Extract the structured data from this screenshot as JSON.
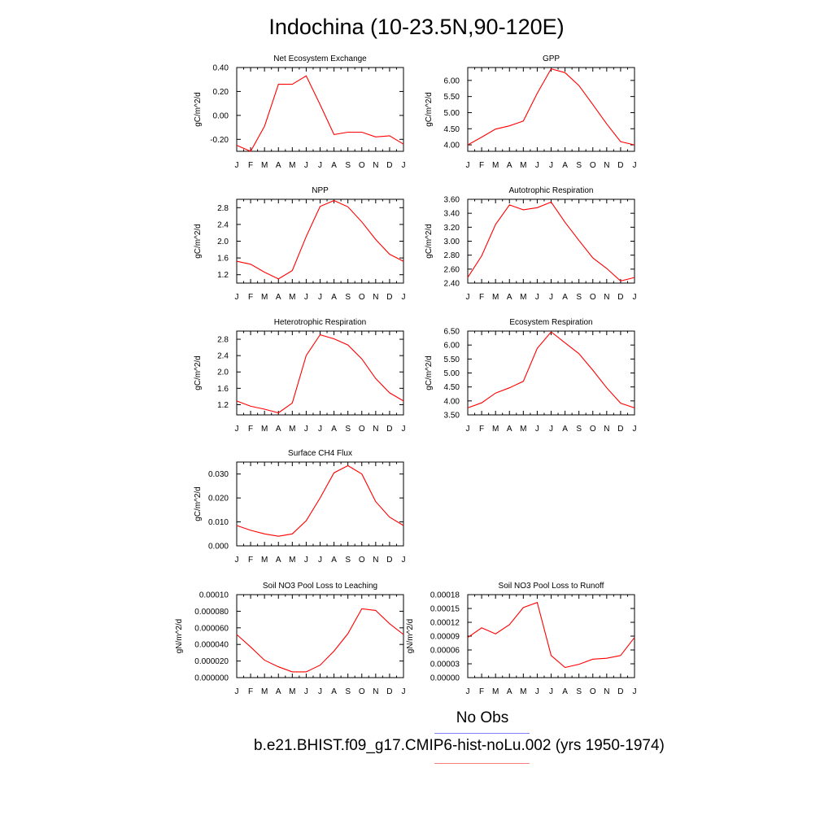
{
  "title": "Indochina (10-23.5N,90-120E)",
  "legend": {
    "obs_label": "No Obs",
    "case_label": "b.e21.BHIST.f09_g17.CMIP6-hist-noLu.002 (yrs 1950-1974)",
    "obs_color": "#7f7fff",
    "case_color": "#ff7f7f"
  },
  "line_color": "#ff0000",
  "chart_data": [
    {
      "type": "line",
      "title": "Net Ecosystem Exchange",
      "ylabel": "gC/m^2/d",
      "categories": [
        "J",
        "F",
        "M",
        "A",
        "M",
        "J",
        "J",
        "A",
        "S",
        "O",
        "N",
        "D",
        "J"
      ],
      "values": [
        -0.25,
        -0.3,
        -0.09,
        0.26,
        0.26,
        0.33,
        0.09,
        -0.16,
        -0.14,
        -0.14,
        -0.18,
        -0.17,
        -0.24
      ],
      "ylim": [
        -0.3,
        0.4
      ],
      "yticks": [
        -0.2,
        0.0,
        0.2,
        0.4
      ],
      "ytick_labels": [
        "-0.20",
        "0.00",
        "0.20",
        "0.40"
      ]
    },
    {
      "type": "line",
      "title": "GPP",
      "ylabel": "gC/m^2/d",
      "categories": [
        "J",
        "F",
        "M",
        "A",
        "M",
        "J",
        "J",
        "A",
        "S",
        "O",
        "N",
        "D",
        "J"
      ],
      "values": [
        4.0,
        4.24,
        4.49,
        4.59,
        4.74,
        5.6,
        6.36,
        6.24,
        5.84,
        5.25,
        4.65,
        4.1,
        4.0
      ],
      "ylim": [
        3.8,
        6.4
      ],
      "yticks": [
        4.0,
        4.5,
        5.0,
        5.5,
        6.0
      ],
      "ytick_labels": [
        "4.00",
        "4.50",
        "5.00",
        "5.50",
        "6.00"
      ]
    },
    {
      "type": "line",
      "title": "NPP",
      "ylabel": "gC/m^2/d",
      "categories": [
        "J",
        "F",
        "M",
        "A",
        "M",
        "J",
        "J",
        "A",
        "S",
        "O",
        "N",
        "D",
        "J"
      ],
      "values": [
        1.52,
        1.45,
        1.26,
        1.1,
        1.3,
        2.11,
        2.83,
        2.97,
        2.82,
        2.46,
        2.04,
        1.69,
        1.52
      ],
      "ylim": [
        1.0,
        3.0
      ],
      "yticks": [
        1.2,
        1.6,
        2.0,
        2.4,
        2.8
      ],
      "ytick_labels": [
        "1.2",
        "1.6",
        "2.0",
        "2.4",
        "2.8"
      ]
    },
    {
      "type": "line",
      "title": "Autotrophic Respiration",
      "ylabel": "gC/m^2/d",
      "categories": [
        "J",
        "F",
        "M",
        "A",
        "M",
        "J",
        "J",
        "A",
        "S",
        "O",
        "N",
        "D",
        "J"
      ],
      "values": [
        2.48,
        2.79,
        3.24,
        3.52,
        3.45,
        3.48,
        3.56,
        3.27,
        3.01,
        2.76,
        2.61,
        2.43,
        2.48
      ],
      "ylim": [
        2.4,
        3.6
      ],
      "yticks": [
        2.4,
        2.6,
        2.8,
        3.0,
        3.2,
        3.4,
        3.6
      ],
      "ytick_labels": [
        "2.40",
        "2.60",
        "2.80",
        "3.00",
        "3.20",
        "3.40",
        "3.60"
      ]
    },
    {
      "type": "line",
      "title": "Heterotrophic Respiration",
      "ylabel": "gC/m^2/d",
      "categories": [
        "J",
        "F",
        "M",
        "A",
        "M",
        "J",
        "J",
        "A",
        "S",
        "O",
        "N",
        "D",
        "J"
      ],
      "values": [
        1.29,
        1.16,
        1.09,
        1.0,
        1.24,
        2.4,
        2.91,
        2.81,
        2.66,
        2.32,
        1.84,
        1.49,
        1.29
      ],
      "ylim": [
        0.95,
        3.0
      ],
      "yticks": [
        1.2,
        1.6,
        2.0,
        2.4,
        2.8
      ],
      "ytick_labels": [
        "1.2",
        "1.6",
        "2.0",
        "2.4",
        "2.8"
      ]
    },
    {
      "type": "line",
      "title": "Ecosystem Respiration",
      "ylabel": "gC/m^2/d",
      "categories": [
        "J",
        "F",
        "M",
        "A",
        "M",
        "J",
        "J",
        "A",
        "S",
        "O",
        "N",
        "D",
        "J"
      ],
      "values": [
        3.75,
        3.93,
        4.28,
        4.47,
        4.7,
        5.88,
        6.47,
        6.08,
        5.69,
        5.1,
        4.47,
        3.92,
        3.75
      ],
      "ylim": [
        3.5,
        6.5
      ],
      "yticks": [
        3.5,
        4.0,
        4.5,
        5.0,
        5.5,
        6.0,
        6.5
      ],
      "ytick_labels": [
        "3.50",
        "4.00",
        "4.50",
        "5.00",
        "5.50",
        "6.00",
        "6.50"
      ]
    },
    {
      "type": "line",
      "title": "Surface CH4 Flux",
      "ylabel": "gC/m^2/d",
      "categories": [
        "J",
        "F",
        "M",
        "A",
        "M",
        "J",
        "J",
        "A",
        "S",
        "O",
        "N",
        "D",
        "J"
      ],
      "values": [
        0.0085,
        0.0065,
        0.005,
        0.004,
        0.005,
        0.0105,
        0.02,
        0.0305,
        0.0335,
        0.03,
        0.0185,
        0.012,
        0.0085
      ],
      "ylim": [
        0.0,
        0.035
      ],
      "yticks": [
        0.0,
        0.01,
        0.02,
        0.03
      ],
      "ytick_labels": [
        "0.000",
        "0.010",
        "0.020",
        "0.030"
      ]
    },
    {
      "type": "line",
      "title": "Soil NO3 Pool Loss to Leaching",
      "ylabel": "gN/m^2/d",
      "categories": [
        "J",
        "F",
        "M",
        "A",
        "M",
        "J",
        "J",
        "A",
        "S",
        "O",
        "N",
        "D",
        "J"
      ],
      "values": [
        5.2e-05,
        3.7e-05,
        2.1e-05,
        1.3e-05,
        7e-06,
        7e-06,
        1.5e-05,
        3.2e-05,
        5.3e-05,
        8.3e-05,
        8.1e-05,
        6.5e-05,
        5.2e-05
      ],
      "ylim": [
        0.0,
        0.0001
      ],
      "yticks": [
        0.0,
        2e-05,
        4e-05,
        6e-05,
        8e-05,
        0.0001
      ],
      "ytick_labels": [
        "0.000000",
        "0.000020",
        "0.000040",
        "0.000060",
        "0.000080",
        "0.00010"
      ]
    },
    {
      "type": "line",
      "title": "Soil NO3 Pool Loss to Runoff",
      "ylabel": "gN/m^2/d",
      "categories": [
        "J",
        "F",
        "M",
        "A",
        "M",
        "J",
        "J",
        "A",
        "S",
        "O",
        "N",
        "D",
        "J"
      ],
      "values": [
        8.7e-05,
        0.000108,
        9.5e-05,
        0.000115,
        0.000152,
        0.000163,
        4.8e-05,
        2.2e-05,
        2.9e-05,
        4e-05,
        4.2e-05,
        4.8e-05,
        8.7e-05
      ],
      "ylim": [
        0.0,
        0.00018
      ],
      "yticks": [
        0.0,
        3e-05,
        6e-05,
        9e-05,
        0.00012,
        0.00015,
        0.00018
      ],
      "ytick_labels": [
        "0.00000",
        "0.00003",
        "0.00006",
        "0.00009",
        "0.00012",
        "0.00015",
        "0.00018"
      ]
    }
  ]
}
